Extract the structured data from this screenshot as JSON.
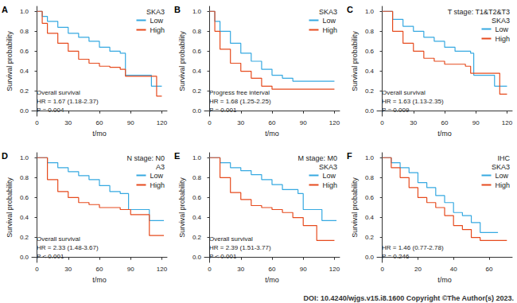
{
  "footer": "DOI: 10.4240/wjgs.v15.i8.1600 Copyright ©The Author(s) 2023.",
  "chart_data": [
    {
      "type": "step",
      "panel": "A",
      "legend_title": "SKA3",
      "annotations": [
        "Overall survival",
        "HR = 1.67 (1.18-2.37)",
        "P = 0.004"
      ],
      "x_label": "t/mo",
      "y_label": "Survival probability",
      "xlim": [
        -5,
        125
      ],
      "xticks": [
        0,
        30,
        60,
        90,
        120
      ],
      "ylim": [
        -0.05,
        1.05
      ],
      "yticks": [
        {
          "value": 0,
          "label": "0.0"
        },
        0.2,
        0.4,
        0.6,
        0.8,
        {
          "value": 1,
          "label": "1.0"
        }
      ],
      "grid": false,
      "series": [
        {
          "name": "Low",
          "color": "#36A9E1",
          "x": [
            0,
            5,
            10,
            20,
            30,
            40,
            50,
            60,
            70,
            80,
            85,
            100,
            110,
            120
          ],
          "values": [
            1,
            0.95,
            0.9,
            0.84,
            0.78,
            0.74,
            0.7,
            0.64,
            0.6,
            0.58,
            0.36,
            0.36,
            0.25,
            0.25
          ]
        },
        {
          "name": "High",
          "color": "#E64B1E",
          "x": [
            0,
            5,
            10,
            20,
            30,
            40,
            50,
            60,
            70,
            80,
            85,
            110,
            115,
            120
          ],
          "values": [
            1,
            0.88,
            0.78,
            0.68,
            0.6,
            0.52,
            0.48,
            0.45,
            0.44,
            0.42,
            0.35,
            0.35,
            0.15,
            0.15
          ]
        }
      ]
    },
    {
      "type": "step",
      "panel": "B",
      "legend_title": "SKA3",
      "annotations": [
        "Progress free interval",
        "HR = 1.68 (1.25-2.25)",
        "P = 0.001"
      ],
      "x_label": "t/mo",
      "y_label": "Survival probability",
      "xlim": [
        -5,
        125
      ],
      "xticks": [
        0,
        30,
        60,
        90,
        120
      ],
      "ylim": [
        -0.05,
        1.05
      ],
      "yticks": [
        {
          "value": 0,
          "label": "0.0"
        },
        0.2,
        0.4,
        0.6,
        0.8,
        {
          "value": 1,
          "label": "1.0"
        }
      ],
      "grid": false,
      "series": [
        {
          "name": "Low",
          "color": "#36A9E1",
          "x": [
            0,
            5,
            10,
            20,
            30,
            40,
            50,
            60,
            70,
            80,
            120
          ],
          "values": [
            1,
            0.9,
            0.8,
            0.68,
            0.58,
            0.5,
            0.42,
            0.36,
            0.33,
            0.3,
            0.3
          ]
        },
        {
          "name": "High",
          "color": "#E64B1E",
          "x": [
            0,
            5,
            10,
            20,
            30,
            40,
            50,
            60,
            120
          ],
          "values": [
            1,
            0.8,
            0.62,
            0.48,
            0.4,
            0.33,
            0.25,
            0.22,
            0.22
          ]
        }
      ]
    },
    {
      "type": "step",
      "panel": "C",
      "subtitle": "T stage: T1&T2&T3",
      "legend_title": "SKA3",
      "annotations": [
        "Overall survival",
        "HR = 1.63 (1.13-2.35)",
        "P = 0.009"
      ],
      "x_label": "t/mo",
      "y_label": "Survival probability",
      "xlim": [
        -5,
        125
      ],
      "xticks": [
        0,
        30,
        60,
        90,
        120
      ],
      "ylim": [
        -0.05,
        1.05
      ],
      "yticks": [
        {
          "value": 0,
          "label": "0.0"
        },
        0.2,
        0.4,
        0.6,
        0.8,
        {
          "value": 1,
          "label": "1.0"
        }
      ],
      "grid": false,
      "series": [
        {
          "name": "Low",
          "color": "#36A9E1",
          "x": [
            0,
            10,
            20,
            30,
            40,
            50,
            60,
            70,
            85,
            88,
            105,
            108,
            120
          ],
          "values": [
            1,
            0.92,
            0.85,
            0.8,
            0.74,
            0.7,
            0.64,
            0.6,
            0.58,
            0.36,
            0.36,
            0.25,
            0.25
          ]
        },
        {
          "name": "High",
          "color": "#E64B1E",
          "x": [
            0,
            10,
            20,
            30,
            40,
            50,
            60,
            80,
            85,
            110,
            113,
            120
          ],
          "values": [
            1,
            0.8,
            0.68,
            0.6,
            0.53,
            0.5,
            0.47,
            0.45,
            0.38,
            0.38,
            0.17,
            0.17
          ]
        }
      ]
    },
    {
      "type": "step",
      "panel": "D",
      "subtitle": "N stage: N0",
      "legend_title": "A3",
      "annotations": [
        "Overall survival",
        "HR = 2.33 (1.48-3.67)",
        "P < 0.001"
      ],
      "x_label": "t/mo",
      "y_label": "Survival probability",
      "xlim": [
        -5,
        125
      ],
      "xticks": [
        0,
        30,
        60,
        90,
        120
      ],
      "ylim": [
        -0.05,
        1.05
      ],
      "yticks": [
        {
          "value": 0,
          "label": "0.0"
        },
        0.2,
        0.4,
        0.6,
        0.8,
        {
          "value": 1,
          "label": "1.0"
        }
      ],
      "grid": false,
      "series": [
        {
          "name": "Low",
          "color": "#36A9E1",
          "x": [
            0,
            10,
            20,
            30,
            40,
            50,
            60,
            70,
            80,
            88,
            105,
            108,
            122
          ],
          "values": [
            1,
            0.95,
            0.9,
            0.86,
            0.82,
            0.78,
            0.72,
            0.66,
            0.64,
            0.48,
            0.48,
            0.37,
            0.37
          ]
        },
        {
          "name": "High",
          "color": "#E64B1E",
          "x": [
            0,
            10,
            20,
            30,
            40,
            50,
            60,
            80,
            90,
            105,
            108,
            122
          ],
          "values": [
            1,
            0.78,
            0.66,
            0.6,
            0.55,
            0.53,
            0.5,
            0.48,
            0.43,
            0.43,
            0.22,
            0.22
          ]
        }
      ]
    },
    {
      "type": "step",
      "panel": "E",
      "subtitle": "M stage: M0",
      "legend_title": "SKA3",
      "annotations": [
        "Overall survival",
        "HR = 2.39 (1.51-3.77)",
        "P < 0.001"
      ],
      "x_label": "t/mo",
      "y_label": "Survival probability",
      "xlim": [
        -5,
        125
      ],
      "xticks": [
        0,
        30,
        60,
        90,
        120
      ],
      "ylim": [
        -0.05,
        1.05
      ],
      "yticks": [
        {
          "value": 0,
          "label": "0.0"
        },
        0.2,
        0.4,
        0.6,
        0.8,
        {
          "value": 1,
          "label": "1.0"
        }
      ],
      "grid": false,
      "series": [
        {
          "name": "Low",
          "color": "#36A9E1",
          "x": [
            0,
            10,
            20,
            30,
            40,
            50,
            60,
            70,
            85,
            90,
            105,
            108,
            122
          ],
          "values": [
            1,
            0.95,
            0.9,
            0.87,
            0.83,
            0.78,
            0.73,
            0.68,
            0.64,
            0.48,
            0.48,
            0.37,
            0.37
          ]
        },
        {
          "name": "High",
          "color": "#E64B1E",
          "x": [
            0,
            10,
            20,
            30,
            40,
            50,
            60,
            70,
            80,
            90,
            100,
            103,
            120
          ],
          "values": [
            1,
            0.8,
            0.65,
            0.58,
            0.52,
            0.5,
            0.48,
            0.45,
            0.4,
            0.32,
            0.32,
            0.17,
            0.17
          ]
        }
      ]
    },
    {
      "type": "step",
      "panel": "F",
      "subtitle": "IHC",
      "legend_title": "SKA3",
      "annotations": [
        "HR = 1.46 (0.77-2.78)",
        "P = 0.246"
      ],
      "x_label": "t/mo",
      "y_label": "Survival probability",
      "xlim": [
        -3,
        73
      ],
      "xticks": [
        0,
        20,
        40,
        60
      ],
      "ylim": [
        -0.05,
        1.05
      ],
      "yticks": [
        {
          "value": 0,
          "label": "0.0"
        },
        0.2,
        0.4,
        0.6,
        0.8,
        {
          "value": 1,
          "label": "1.0"
        }
      ],
      "grid": false,
      "series": [
        {
          "name": "Low",
          "color": "#36A9E1",
          "x": [
            0,
            5,
            10,
            15,
            20,
            25,
            30,
            35,
            40,
            45,
            50,
            55,
            65
          ],
          "values": [
            1,
            0.95,
            0.9,
            0.85,
            0.75,
            0.7,
            0.62,
            0.55,
            0.45,
            0.42,
            0.35,
            0.25,
            0.25
          ]
        },
        {
          "name": "High",
          "color": "#E64B1E",
          "x": [
            0,
            5,
            10,
            15,
            20,
            25,
            30,
            35,
            40,
            45,
            50,
            55,
            70
          ],
          "values": [
            1,
            0.9,
            0.8,
            0.7,
            0.6,
            0.55,
            0.5,
            0.42,
            0.32,
            0.28,
            0.2,
            0.17,
            0.17
          ]
        }
      ]
    }
  ]
}
